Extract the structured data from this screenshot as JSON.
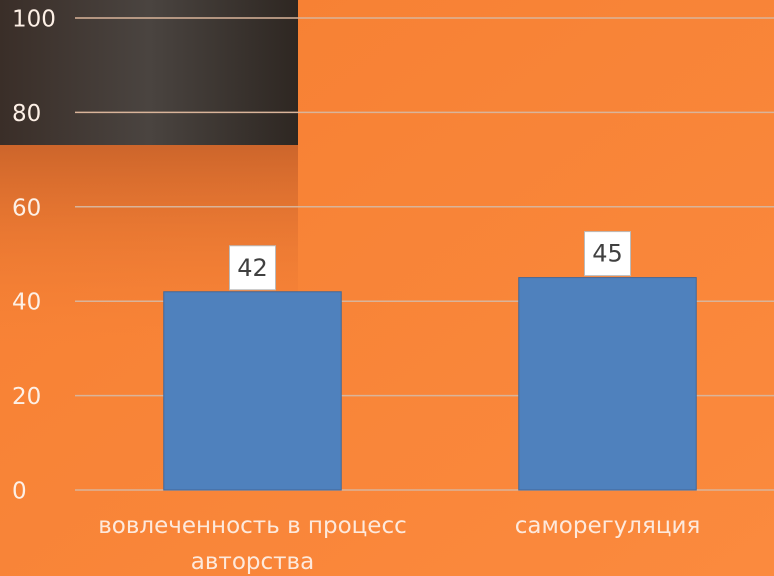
{
  "chart_data": {
    "type": "bar",
    "categories": [
      "вовлеченность в процесс авторства",
      "саморегуляция"
    ],
    "values": [
      42,
      45
    ],
    "color": "#4f81bd",
    "ylim": [
      0,
      100
    ],
    "yticks": [
      0,
      20,
      40,
      60,
      80,
      100
    ],
    "grid": true
  }
}
